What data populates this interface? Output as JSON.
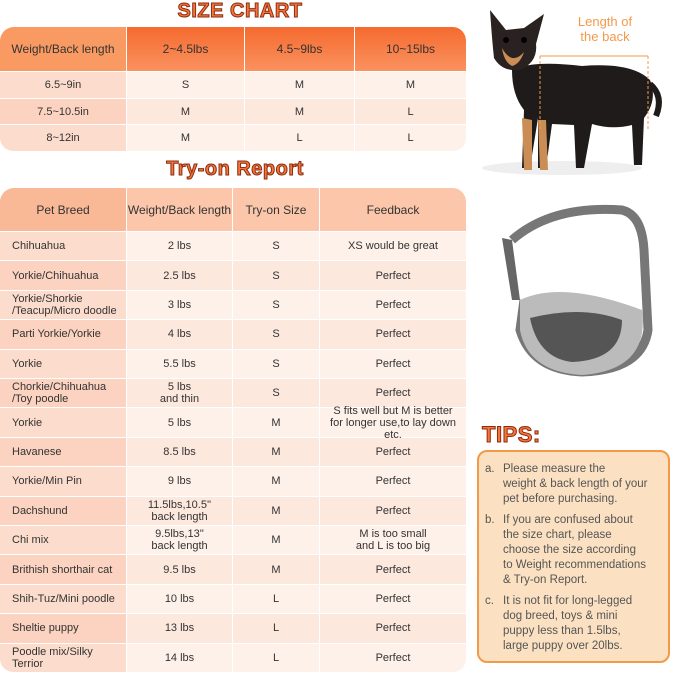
{
  "size_chart": {
    "title": "SIZE CHART",
    "header": [
      "Weight/Back length",
      "2~4.5lbs",
      "4.5~9lbs",
      "10~15lbs"
    ],
    "rows": [
      [
        "6.5~9in",
        "S",
        "M",
        "M"
      ],
      [
        "7.5~10.5in",
        "M",
        "M",
        "L"
      ],
      [
        "8~12in",
        "M",
        "L",
        "L"
      ]
    ]
  },
  "tryon_report": {
    "title": "Try-on Report",
    "header": [
      "Pet Breed",
      "Weight/Back length",
      "Try-on Size",
      "Feedback"
    ],
    "rows": [
      [
        "Chihuahua",
        "2 lbs",
        "S",
        "XS would be great"
      ],
      [
        "Yorkie/Chihuahua",
        "2.5 lbs",
        "S",
        "Perfect"
      ],
      [
        "Yorkie/Shorkie\n/Teacup/Micro doodle",
        "3 lbs",
        "S",
        "Perfect"
      ],
      [
        "Parti Yorkie/Yorkie",
        "4 lbs",
        "S",
        "Perfect"
      ],
      [
        "Yorkie",
        "5.5 lbs",
        "S",
        "Perfect"
      ],
      [
        "Chorkie/Chihuahua\n/Toy poodle",
        "5 lbs\nand thin",
        "S",
        "Perfect"
      ],
      [
        "Yorkie",
        "5 lbs",
        "M",
        "S fits well but M is better\nfor longer use,to lay down etc."
      ],
      [
        "Havanese",
        "8.5 lbs",
        "M",
        "Perfect"
      ],
      [
        "Yorkie/Min Pin",
        "9 lbs",
        "M",
        "Perfect"
      ],
      [
        "Dachshund",
        "11.5lbs,10.5''\nback length",
        "M",
        "Perfect"
      ],
      [
        "Chi mix",
        "9.5lbs,13''\nback length",
        "M",
        "M is too small\nand L is too big"
      ],
      [
        "Brithish shorthair cat",
        "9.5 lbs",
        "M",
        "Perfect"
      ],
      [
        "Shih-Tuz/Mini poodle",
        "10 lbs",
        "L",
        "Perfect"
      ],
      [
        "Sheltie puppy",
        "13 lbs",
        "L",
        "Perfect"
      ],
      [
        "Poodle mix/Silky\nTerrior",
        "14 lbs",
        "L",
        "Perfect"
      ]
    ]
  },
  "dog_annotation": "Length of\nthe back",
  "tips": {
    "title": "TIPS:",
    "items": [
      {
        "marker": "a.",
        "text": "Please measure the\nweight & back length of your\npet before purchasing."
      },
      {
        "marker": "b.",
        "text": "If you are confused about\nthe size chart, please\nchoose the size according\nto Weight recommendations\n& Try-on Report."
      },
      {
        "marker": "c.",
        "text": "It is not fit for long-legged\ndog breed, toys & mini\npuppy less than 1.5lbs,\nlarge puppy over 20lbs."
      }
    ]
  }
}
